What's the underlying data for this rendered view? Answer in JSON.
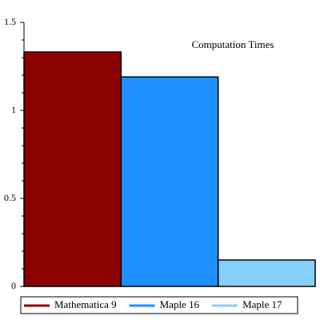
{
  "chart_data": {
    "type": "bar",
    "title": "Computation Times",
    "series": [
      {
        "name": "Mathematica 9",
        "color": "#8b0000",
        "values": [
          1.332
        ]
      },
      {
        "name": "Maple 16",
        "color": "#1e90ff",
        "values": [
          1.19
        ]
      },
      {
        "name": "Maple 17",
        "color": "#87cefa",
        "values": [
          0.15
        ]
      }
    ],
    "ylim": [
      0,
      1.5
    ],
    "yticks": [
      0,
      0.5,
      1,
      1.5
    ],
    "yminorticks": [
      0.1,
      0.2,
      0.3,
      0.4,
      0.6,
      0.7,
      0.8,
      0.9,
      1.1,
      1.2,
      1.3,
      1.4
    ],
    "legend": "bottom"
  }
}
